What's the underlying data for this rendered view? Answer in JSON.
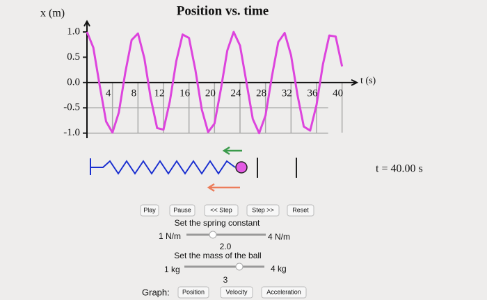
{
  "chart_data": {
    "type": "line",
    "title": "Position vs. time",
    "y_label": "x (m)",
    "x_label": "t (s)",
    "x": [
      0,
      1,
      2,
      3,
      4,
      5,
      6,
      7,
      8,
      9,
      10,
      11,
      12,
      13,
      14,
      15,
      16,
      17,
      18,
      19,
      20,
      21,
      22,
      23,
      24,
      25,
      26,
      27,
      28,
      29,
      30,
      31,
      32,
      33,
      34,
      35,
      36,
      37,
      38,
      39,
      40
    ],
    "series": [
      {
        "color": "#dd44dd",
        "values": [
          1.0,
          0.69,
          -0.06,
          -0.77,
          -0.99,
          -0.59,
          0.19,
          0.84,
          0.97,
          0.48,
          -0.31,
          -0.9,
          -0.93,
          -0.37,
          0.42,
          0.95,
          0.88,
          0.25,
          -0.53,
          -0.98,
          -0.81,
          -0.13,
          0.63,
          1.0,
          0.73,
          0.01,
          -0.72,
          -1.0,
          -0.65,
          0.12,
          0.8,
          0.98,
          0.54,
          -0.24,
          -0.87,
          -0.95,
          -0.44,
          0.36,
          0.93,
          0.91,
          0.32
        ]
      }
    ],
    "xlim": [
      0,
      42
    ],
    "ylim": [
      -1.1,
      1.1
    ],
    "xticks": [
      4,
      8,
      12,
      16,
      20,
      24,
      28,
      32,
      36,
      40
    ],
    "yticks": [
      {
        "value": 1,
        "label": "1.0"
      },
      {
        "value": 0.5,
        "label": "0.5"
      },
      {
        "value": 0,
        "label": "0.0"
      },
      {
        "value": -0.5,
        "label": "-0.5"
      },
      {
        "value": -1,
        "label": "-1.0"
      }
    ],
    "grid": true
  },
  "simulation": {
    "time_display": "t = 40.00 s"
  },
  "controls": {
    "buttons": [
      "Play",
      "Pause",
      "<< Step",
      "Step >>",
      "Reset"
    ],
    "spring": {
      "label": "Set the spring constant",
      "min_label": "1 N/m",
      "max_label": "4 N/m",
      "value_label": "2.0"
    },
    "mass": {
      "label": "Set the mass of the ball",
      "min_label": "1 kg",
      "max_label": "4 kg",
      "value_label": "3"
    },
    "graph": {
      "label": "Graph:",
      "buttons": [
        "Position",
        "Velocity",
        "Acceleration"
      ]
    }
  }
}
